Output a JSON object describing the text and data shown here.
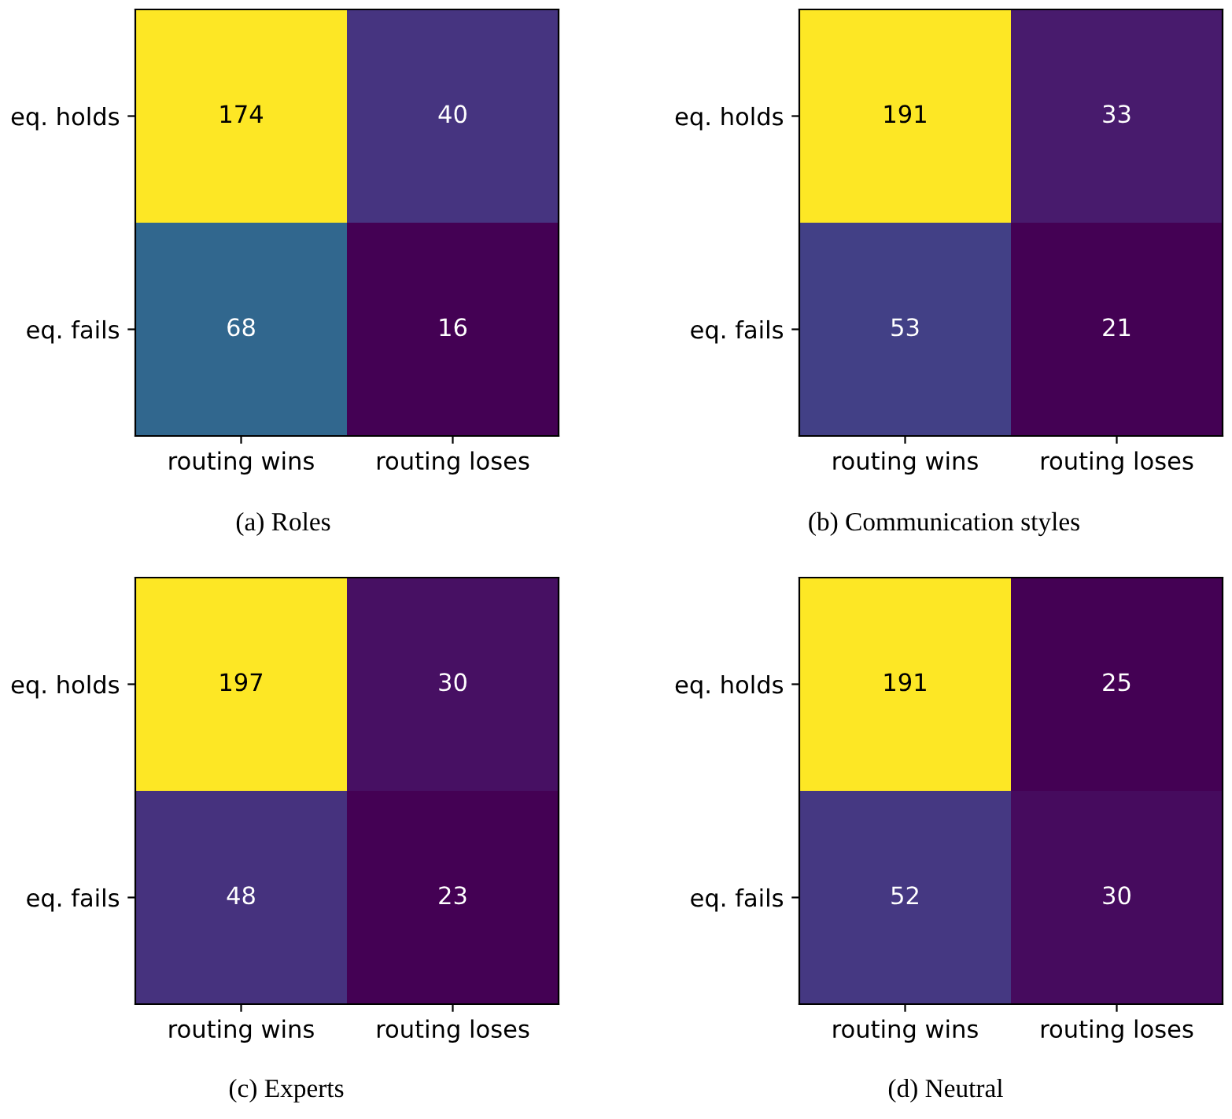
{
  "chart_data": [
    {
      "type": "heatmap",
      "title": "(a) Roles",
      "categories": [
        "routing wins",
        "routing loses"
      ],
      "y_categories": [
        "eq. holds",
        "eq. fails"
      ],
      "cells": [
        [
          174,
          40
        ],
        [
          68,
          16
        ]
      ],
      "data_labels": true
    },
    {
      "type": "heatmap",
      "title": "(b) Communication styles",
      "categories": [
        "routing wins",
        "routing loses"
      ],
      "y_categories": [
        "eq. holds",
        "eq. fails"
      ],
      "cells": [
        [
          191,
          33
        ],
        [
          53,
          21
        ]
      ],
      "data_labels": true
    },
    {
      "type": "heatmap",
      "title": "(c) Experts",
      "categories": [
        "routing wins",
        "routing loses"
      ],
      "y_categories": [
        "eq. holds",
        "eq. fails"
      ],
      "cells": [
        [
          197,
          30
        ],
        [
          48,
          23
        ]
      ],
      "data_labels": true
    },
    {
      "type": "heatmap",
      "title": "(d) Neutral",
      "categories": [
        "routing wins",
        "routing loses"
      ],
      "y_categories": [
        "eq. holds",
        "eq. fails"
      ],
      "cells": [
        [
          191,
          25
        ],
        [
          52,
          30
        ]
      ],
      "data_labels": true
    }
  ]
}
